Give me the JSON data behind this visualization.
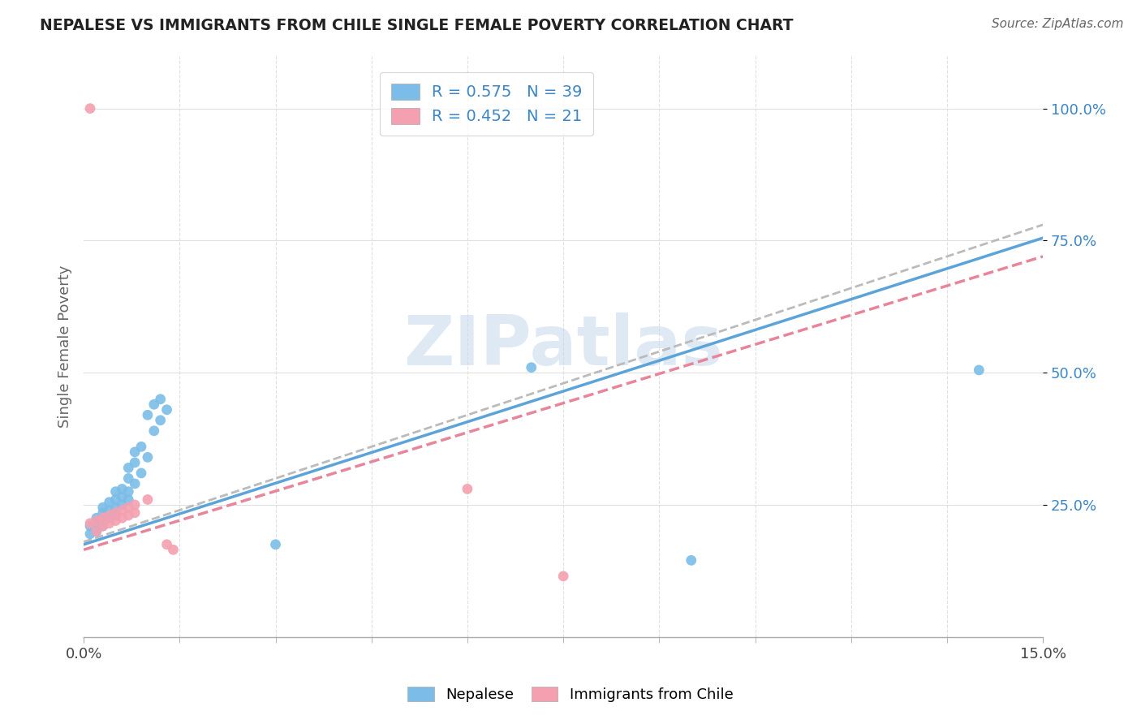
{
  "title": "NEPALESE VS IMMIGRANTS FROM CHILE SINGLE FEMALE POVERTY CORRELATION CHART",
  "source": "Source: ZipAtlas.com",
  "ylabel": "Single Female Poverty",
  "xlim": [
    0.0,
    0.15
  ],
  "ylim": [
    0.0,
    1.1
  ],
  "ytick_positions": [
    0.25,
    0.5,
    0.75,
    1.0
  ],
  "ytick_labels": [
    "25.0%",
    "50.0%",
    "75.0%",
    "100.0%"
  ],
  "blue_color": "#7bbde8",
  "pink_color": "#f4a0b0",
  "blue_line_color": "#5ba3d9",
  "pink_line_color": "#e8859a",
  "gray_line_color": "#bbbbbb",
  "legend_text_color": "#3a86c8",
  "background_color": "#ffffff",
  "grid_color": "#e0e0e0",
  "watermark": "ZIPatlas",
  "blue_r": "0.575",
  "blue_n": "39",
  "pink_r": "0.452",
  "pink_n": "21",
  "blue_scatter": [
    [
      0.001,
      0.195
    ],
    [
      0.001,
      0.21
    ],
    [
      0.002,
      0.2
    ],
    [
      0.002,
      0.215
    ],
    [
      0.002,
      0.225
    ],
    [
      0.003,
      0.21
    ],
    [
      0.003,
      0.22
    ],
    [
      0.003,
      0.235
    ],
    [
      0.003,
      0.245
    ],
    [
      0.004,
      0.225
    ],
    [
      0.004,
      0.24
    ],
    [
      0.004,
      0.255
    ],
    [
      0.005,
      0.23
    ],
    [
      0.005,
      0.245
    ],
    [
      0.005,
      0.26
    ],
    [
      0.005,
      0.275
    ],
    [
      0.006,
      0.25
    ],
    [
      0.006,
      0.265
    ],
    [
      0.006,
      0.28
    ],
    [
      0.007,
      0.26
    ],
    [
      0.007,
      0.275
    ],
    [
      0.007,
      0.3
    ],
    [
      0.007,
      0.32
    ],
    [
      0.008,
      0.33
    ],
    [
      0.008,
      0.35
    ],
    [
      0.008,
      0.29
    ],
    [
      0.009,
      0.31
    ],
    [
      0.009,
      0.36
    ],
    [
      0.01,
      0.34
    ],
    [
      0.01,
      0.42
    ],
    [
      0.011,
      0.39
    ],
    [
      0.011,
      0.44
    ],
    [
      0.012,
      0.41
    ],
    [
      0.012,
      0.45
    ],
    [
      0.013,
      0.43
    ],
    [
      0.03,
      0.175
    ],
    [
      0.07,
      0.51
    ],
    [
      0.095,
      0.145
    ],
    [
      0.14,
      0.505
    ]
  ],
  "pink_scatter": [
    [
      0.001,
      0.215
    ],
    [
      0.002,
      0.2
    ],
    [
      0.002,
      0.22
    ],
    [
      0.003,
      0.21
    ],
    [
      0.003,
      0.225
    ],
    [
      0.004,
      0.215
    ],
    [
      0.004,
      0.23
    ],
    [
      0.005,
      0.22
    ],
    [
      0.005,
      0.235
    ],
    [
      0.006,
      0.225
    ],
    [
      0.006,
      0.24
    ],
    [
      0.007,
      0.23
    ],
    [
      0.007,
      0.245
    ],
    [
      0.008,
      0.235
    ],
    [
      0.008,
      0.25
    ],
    [
      0.01,
      0.26
    ],
    [
      0.013,
      0.175
    ],
    [
      0.014,
      0.165
    ],
    [
      0.06,
      0.28
    ],
    [
      0.075,
      0.115
    ],
    [
      0.001,
      1.0
    ]
  ],
  "blue_line": [
    [
      0.0,
      0.175
    ],
    [
      0.15,
      0.755
    ]
  ],
  "pink_line": [
    [
      0.0,
      0.165
    ],
    [
      0.15,
      0.72
    ]
  ],
  "gray_dashed_line": [
    [
      0.0,
      0.18
    ],
    [
      0.15,
      0.78
    ]
  ]
}
